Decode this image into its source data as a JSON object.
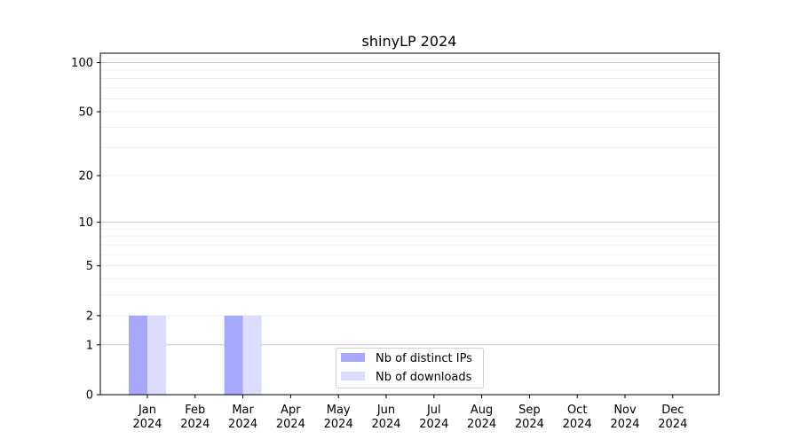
{
  "chart_data": {
    "type": "bar",
    "title": "shinyLP 2024",
    "xlabel": "",
    "ylabel": "",
    "yscale": "symlog (log10(1+y))",
    "ylim": [
      0,
      114
    ],
    "yticks": [
      0,
      1,
      2,
      5,
      10,
      20,
      50,
      100
    ],
    "grid": true,
    "legend_placement": "lower-center",
    "categories": [
      "Jan\n2024",
      "Feb\n2024",
      "Mar\n2024",
      "Apr\n2024",
      "May\n2024",
      "Jun\n2024",
      "Jul\n2024",
      "Aug\n2024",
      "Sep\n2024",
      "Oct\n2024",
      "Nov\n2024",
      "Dec\n2024"
    ],
    "series": [
      {
        "name": "Nb of distinct IPs",
        "color": "#a8a8fa",
        "values": [
          2,
          0,
          2,
          0,
          0,
          0,
          0,
          0,
          0,
          0,
          0,
          0
        ]
      },
      {
        "name": "Nb of downloads",
        "color": "#dcdcfc",
        "values": [
          2,
          0,
          2,
          0,
          0,
          0,
          0,
          0,
          0,
          0,
          0,
          0
        ]
      }
    ]
  }
}
